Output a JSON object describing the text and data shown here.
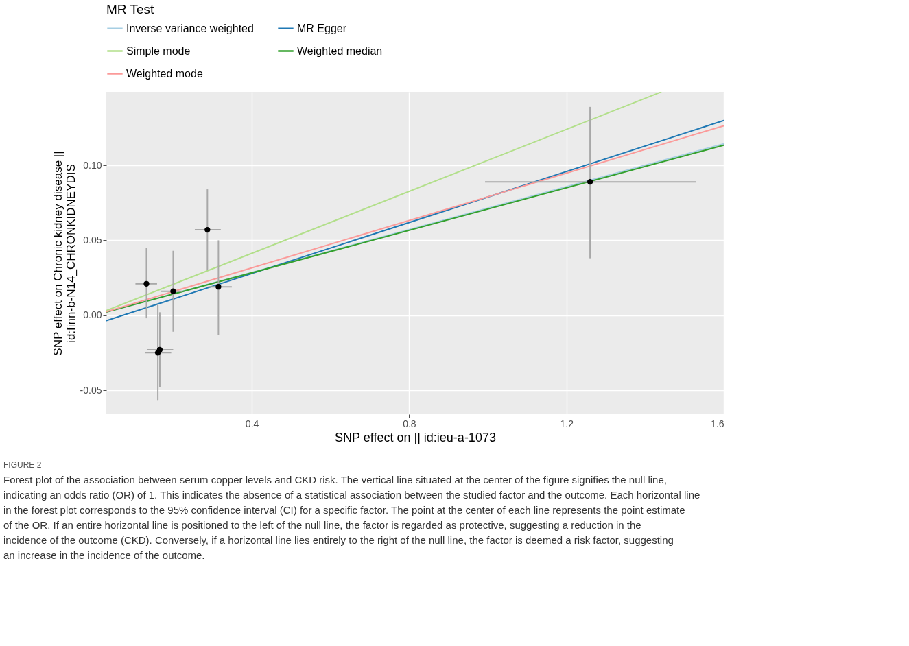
{
  "chart_data": {
    "type": "scatter",
    "xlabel": "SNP effect on  || id:ieu-a-1073",
    "ylabel": "SNP effect on Chronic kidney disease || id:finn-b-N14_CHRONKIDNEYDIS",
    "legend_title": "MR Test",
    "xlim": [
      0.03,
      1.6
    ],
    "ylim": [
      -0.066,
      0.149
    ],
    "xticks": [
      {
        "value": 0.4,
        "label": "0.4"
      },
      {
        "value": 0.8,
        "label": "0.8"
      },
      {
        "value": 1.2,
        "label": "1.2"
      },
      {
        "value": 1.6,
        "label": "1.6"
      }
    ],
    "yticks": [
      {
        "value": -0.05,
        "label": "-0.05"
      },
      {
        "value": 0,
        "label": "0.00"
      },
      {
        "value": 0.05,
        "label": "0.05"
      },
      {
        "value": 0.1,
        "label": "0.10"
      }
    ],
    "grid": true,
    "legend": "top",
    "series": [
      {
        "marker": "circle",
        "color": "#000000",
        "x": [
          0.132,
          0.2,
          0.287,
          0.315,
          0.161,
          0.166,
          1.26
        ],
        "values": [
          0.021,
          0.016,
          0.057,
          0.019,
          -0.025,
          -0.023,
          0.089
        ],
        "errors": [
          [
            -0.002,
            0.045
          ],
          [
            -0.011,
            0.043
          ],
          [
            0.03,
            0.084
          ],
          [
            -0.013,
            0.05
          ],
          [
            -0.057,
            0.007
          ],
          [
            -0.048,
            0.002
          ],
          [
            0.038,
            0.139
          ]
        ],
        "xerrors": [
          [
            0.104,
            0.159
          ],
          [
            0.169,
            0.224
          ],
          [
            0.255,
            0.321
          ],
          [
            0.289,
            0.349
          ],
          [
            0.128,
            0.195
          ],
          [
            0.133,
            0.2
          ],
          [
            0.993,
            1.53
          ]
        ]
      },
      {
        "type": "line",
        "name": "Inverse variance weighted",
        "color": "#a6cee3",
        "x": [
          0.03,
          1.6
        ],
        "values": [
          0.0021,
          0.1144
        ]
      },
      {
        "type": "line",
        "name": "MR Egger",
        "color": "#1f78b4",
        "x": [
          0.03,
          1.6
        ],
        "values": [
          -0.0036,
          0.1299
        ]
      },
      {
        "type": "line",
        "name": "Simple mode",
        "color": "#b2df8a",
        "x": [
          0.03,
          1.44
        ],
        "values": [
          0.0031,
          0.1488
        ]
      },
      {
        "type": "line",
        "name": "Weighted median",
        "color": "#33a02c",
        "x": [
          0.03,
          1.6
        ],
        "values": [
          0.0021,
          0.1134
        ]
      },
      {
        "type": "line",
        "name": "Weighted mode",
        "color": "#fb9a99",
        "x": [
          0.03,
          1.6
        ],
        "values": [
          0.0024,
          0.1264
        ]
      }
    ],
    "annotations": [
      "FIGURE 2",
      "Forest plot of the association between serum copper levels and CKD risk. The vertical line situated at the center of the figure signifies the null line, indicating an odds ratio (OR) of 1. This indicates the absence of a statistical association between the studied factor and the outcome. Each horizontal line in the forest plot corresponds to the 95% confidence interval (CI) for a specific factor. The point at the center of each line represents the point estimate of the OR. If an entire horizontal line is positioned to the left of the null line, the factor is regarded as protective, suggesting a reduction in the incidence of the outcome (CKD). Conversely, if a horizontal line lies entirely to the right of the null line, the factor is deemed a risk factor, suggesting an increase in the incidence of the outcome."
    ]
  }
}
